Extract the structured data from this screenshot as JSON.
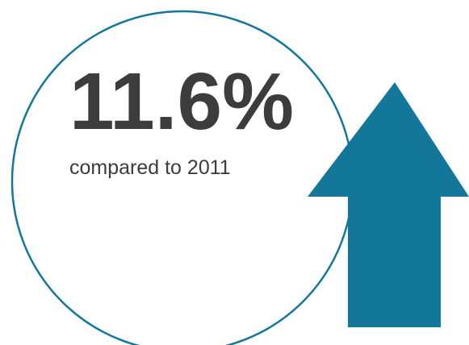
{
  "stat": {
    "value": "11.6%",
    "caption": "compared to 2011",
    "trend_direction": "up"
  },
  "icons": {
    "trend": "arrow-up-icon"
  },
  "colors": {
    "accent": "#127799",
    "circle_stroke": "#127799",
    "text": "#3c3c3c",
    "background": "#ffffff"
  }
}
